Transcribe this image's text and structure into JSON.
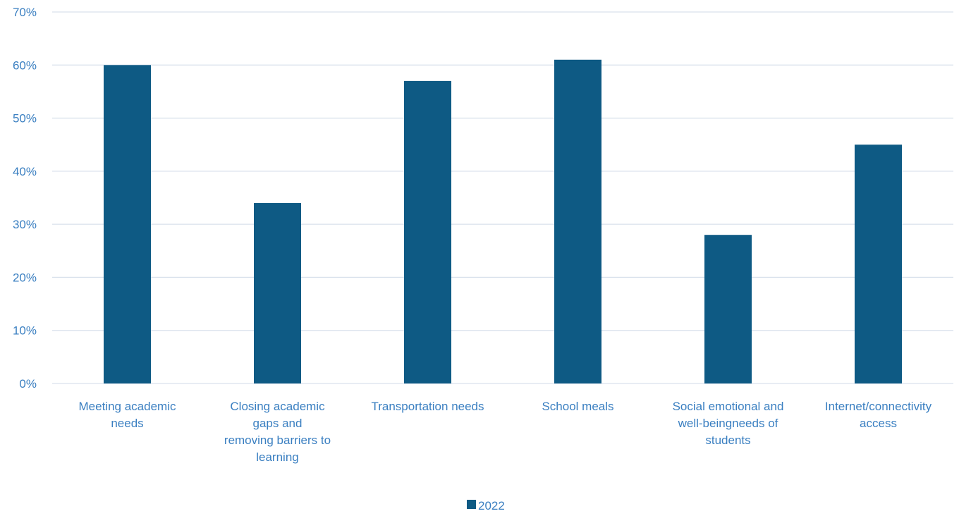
{
  "chart_data": {
    "type": "bar",
    "categories": [
      [
        "Meeting academic",
        "needs"
      ],
      [
        "Closing academic",
        "gaps and",
        "removing barriers to",
        "learning"
      ],
      [
        "Transportation needs"
      ],
      [
        "School meals"
      ],
      [
        "Social emotional and",
        "well-beingneeds of",
        "students"
      ],
      [
        "Internet/connectivity",
        "access"
      ]
    ],
    "series": [
      {
        "name": "2022",
        "values": [
          60,
          34,
          57,
          61,
          28,
          45
        ]
      }
    ],
    "y_ticks": [
      "0%",
      "10%",
      "20%",
      "30%",
      "40%",
      "50%",
      "60%",
      "70%"
    ],
    "ylim": [
      0,
      70
    ],
    "grid": true,
    "legend_position": "bottom",
    "title": "",
    "xlabel": "",
    "ylabel": "",
    "colors": {
      "bar": "#0E5A84",
      "gridline": "#D9E1EC",
      "text": "#3A7FC1"
    }
  }
}
